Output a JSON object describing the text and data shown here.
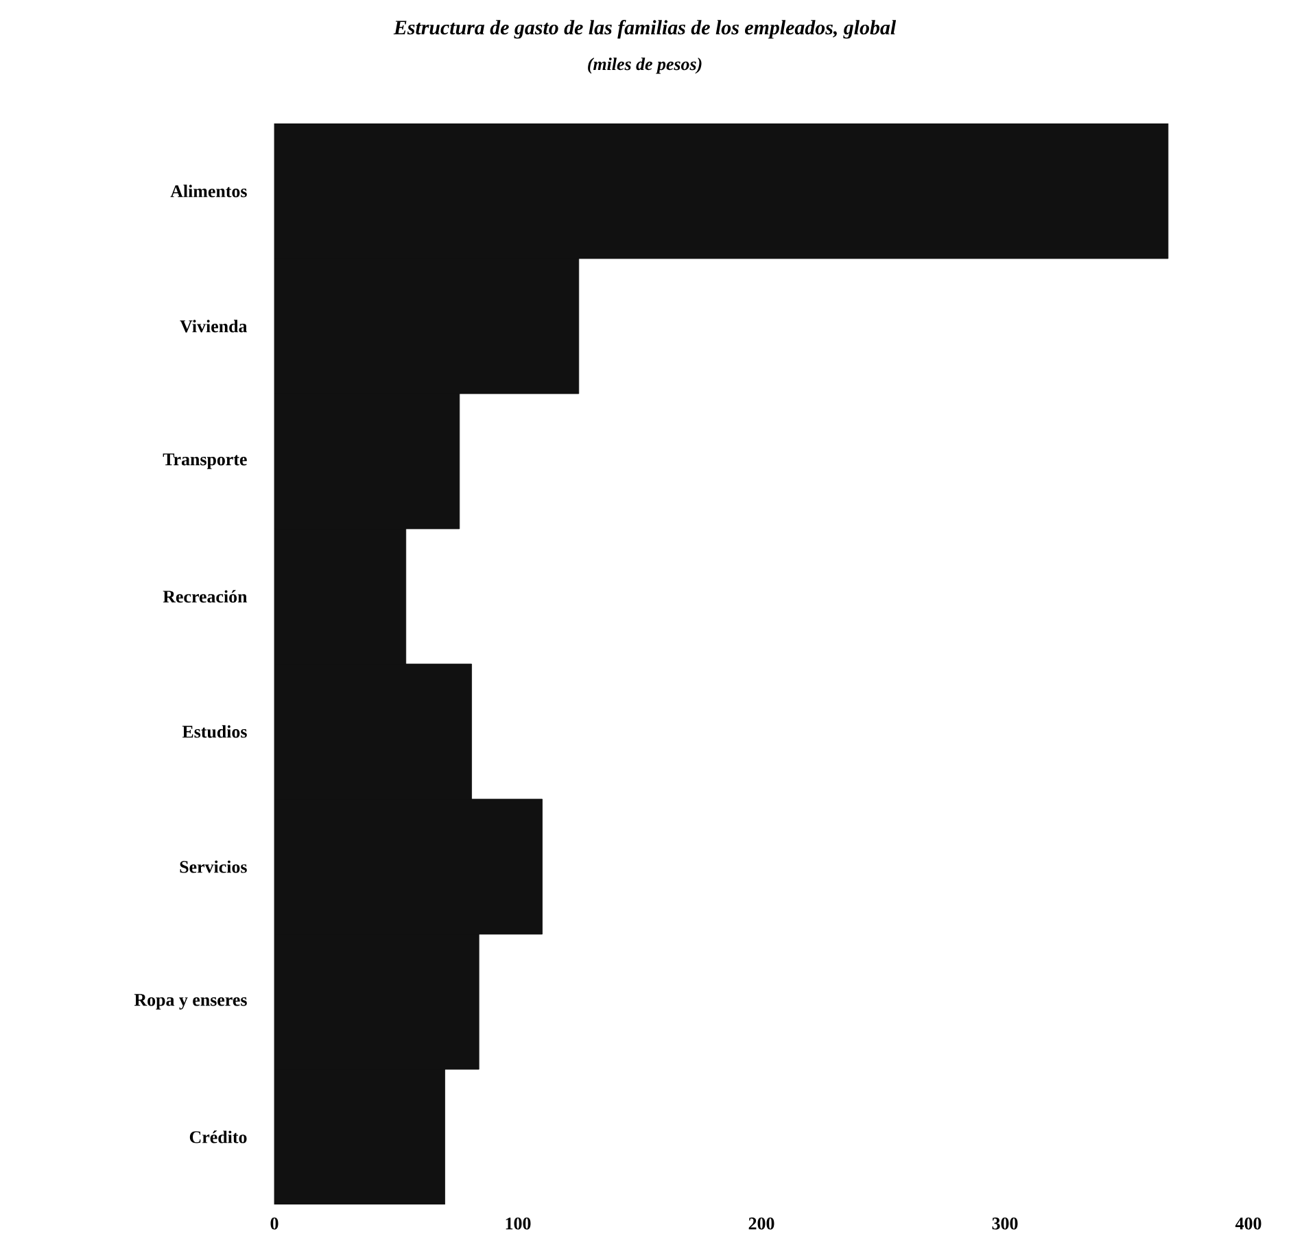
{
  "chart_data": {
    "type": "bar",
    "orientation": "horizontal",
    "title": "Estructura de gasto de las familias de los empleados, global",
    "subtitle": "(miles de pesos)",
    "categories": [
      "Alimentos",
      "Vivienda",
      "Transporte",
      "Recreación",
      "Estudios",
      "Servicios",
      "Ropa y enseres",
      "Crédito"
    ],
    "values": [
      367,
      125,
      76,
      54,
      81,
      110,
      84,
      70
    ],
    "color": "#111111",
    "xlim": [
      0,
      400
    ],
    "xticks": [
      0,
      100,
      200,
      300,
      400
    ]
  }
}
